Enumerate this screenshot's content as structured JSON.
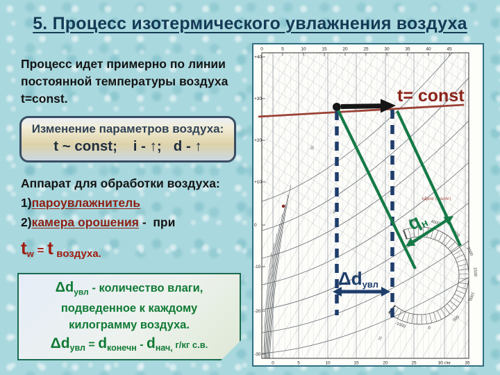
{
  "title": "5. Процесс изотермического увлажнения воздуха",
  "intro": "Процесс идет примерно по линии постоянной температуры воздуха t=const.",
  "params_box": {
    "heading": "Изменение параметров воздуха:",
    "formula": "t ~ const;    i - ↑;   d - ↑"
  },
  "apparatus": {
    "heading": "Аппарат для обработки воздуха:",
    "item1_num": "1)",
    "item1_link": "пароувлажнитель",
    "item2_num": "2)",
    "item2_link": "камера орошения",
    "item2_rest": " -  при",
    "cond_t1": "t",
    "cond_sub1": "w",
    "cond_eq": " = ",
    "cond_t2": "t",
    "cond_sub2": "воздуха."
  },
  "delta_box": {
    "l1_sym": "Δd",
    "l1_sub": "увл",
    "l1_rest": "- количество влаги,",
    "l2": "подведенное к каждому",
    "l3": "килограмму воздуха.",
    "f_sym": "Δd",
    "f_sub": "увл",
    "f_eq": " = ",
    "f_d2": "d",
    "f_d2s": "конечн",
    "f_minus": " - ",
    "f_d3": "d",
    "f_d3s": "нач,",
    "f_units": " г/кг с.в."
  },
  "chart": {
    "t_const_label": "t= const",
    "qn_label": "q",
    "qn_sub": "н",
    "dd_label": "Δd",
    "dd_sub": "увл",
    "corner_label": "кДж/кг (ккал/кг)",
    "top_axis": [
      "0",
      "5",
      "10",
      "15",
      "20",
      "25",
      "30",
      "35",
      "40",
      "45"
    ],
    "left_axis": [
      "+40",
      "+30",
      "+20",
      "+10",
      "0",
      "-10",
      "-20",
      "-30"
    ],
    "bottom_axis": [
      "0",
      "5",
      "10",
      "15",
      "20",
      "25",
      "30 г/кг",
      "35"
    ],
    "ray_labels": [
      "5000",
      "4000",
      "3000",
      "2000",
      "1500",
      "1000",
      "500",
      "0",
      "-1000"
    ],
    "iso_labels": [
      "30",
      "40",
      "50",
      "55"
    ],
    "colors": {
      "process": "#9a4034",
      "t_const": "#8c231a",
      "dash": "#1e3d6b",
      "green": "#157a46",
      "grid": "#9aa0a6",
      "black": "#161616"
    }
  }
}
